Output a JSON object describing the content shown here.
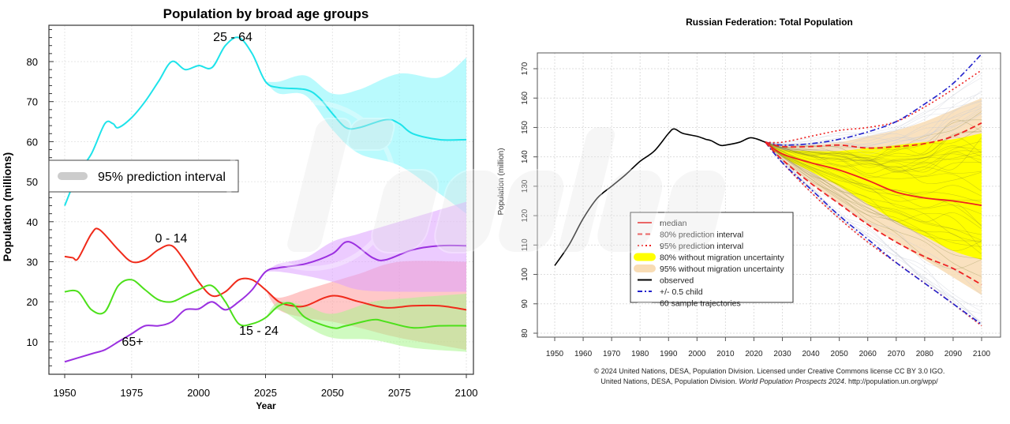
{
  "watermark": "Readovka",
  "chart_data": [
    {
      "type": "line",
      "title": "Population by broad age groups",
      "xlabel": "Year",
      "ylabel": "Population (millions)",
      "xlim": [
        1950,
        2100
      ],
      "ylim": [
        3,
        89
      ],
      "xticks": [
        1950,
        1975,
        2000,
        2025,
        2050,
        2075,
        2100
      ],
      "yticks": [
        10,
        20,
        30,
        40,
        50,
        60,
        70,
        80
      ],
      "grid": true,
      "legend": {
        "placement": "center-left",
        "entries": [
          {
            "label": "95% prediction interval",
            "color": "#cccccc"
          }
        ]
      },
      "series": [
        {
          "name": "25 - 64",
          "color": "#1ee3ea",
          "band_color": "#7ff6fb",
          "x": [
            1950,
            1955,
            1960,
            1965,
            1968,
            1970,
            1975,
            1980,
            1985,
            1990,
            1995,
            2000,
            2005,
            2010,
            2015,
            2020,
            2025,
            2030,
            2040,
            2045,
            2050,
            2055,
            2060,
            2070,
            2075,
            2080,
            2090,
            2100
          ],
          "y": [
            44,
            52,
            57,
            64.5,
            64.5,
            63.5,
            66,
            70,
            75,
            80,
            78,
            79,
            78.5,
            84,
            86,
            82,
            75,
            73.5,
            73,
            71,
            67,
            63.5,
            63.5,
            65.5,
            64.5,
            62,
            60.5,
            60.5
          ],
          "band_x": [
            2025,
            2030,
            2040,
            2050,
            2060,
            2075,
            2090,
            2100
          ],
          "band_lower": [
            75,
            72,
            71.5,
            63,
            57,
            54,
            47,
            42
          ],
          "band_upper": [
            75,
            75,
            76.5,
            72,
            73,
            77,
            76,
            81
          ]
        },
        {
          "name": "0 - 14",
          "color": "#f02a1a",
          "band_color": "#ff9a9a",
          "x": [
            1950,
            1953,
            1955,
            1960,
            1963,
            1970,
            1975,
            1980,
            1985,
            1990,
            1995,
            2000,
            2005,
            2010,
            2015,
            2020,
            2025,
            2030,
            2035,
            2040,
            2050,
            2060,
            2070,
            2080,
            2090,
            2100
          ],
          "y": [
            31.3,
            31,
            30.8,
            37,
            38,
            33,
            30,
            30.5,
            33,
            34,
            30,
            25,
            21.5,
            22.5,
            25.5,
            25.5,
            23,
            20,
            19,
            19,
            21.5,
            20,
            18.5,
            19,
            19,
            18
          ],
          "band_x": [
            2025,
            2030,
            2040,
            2050,
            2060,
            2075,
            2100
          ],
          "band_lower": [
            23,
            18,
            16,
            15,
            13.5,
            11,
            8
          ],
          "band_upper": [
            23,
            21,
            23,
            25,
            27,
            30,
            30
          ]
        },
        {
          "name": "15 - 24",
          "color": "#4ce01a",
          "band_color": "#a8f58c",
          "x": [
            1950,
            1955,
            1960,
            1965,
            1970,
            1975,
            1980,
            1985,
            1990,
            1995,
            2000,
            2005,
            2010,
            2015,
            2020,
            2025,
            2030,
            2035,
            2040,
            2050,
            2055,
            2065,
            2070,
            2080,
            2090,
            2100
          ],
          "y": [
            22.5,
            22.5,
            18,
            17.5,
            24,
            25.5,
            23,
            20.5,
            20,
            21.5,
            23,
            24,
            20,
            14.5,
            14.5,
            16,
            19,
            19.5,
            16,
            13.5,
            14,
            15.5,
            15,
            13.5,
            14,
            14
          ],
          "band_x": [
            2025,
            2030,
            2040,
            2050,
            2065,
            2080,
            2100
          ],
          "band_lower": [
            16,
            18,
            14,
            11,
            10.5,
            8.5,
            7.5
          ],
          "band_upper": [
            16,
            20,
            19,
            17,
            20,
            21,
            22
          ]
        },
        {
          "name": "65+",
          "color": "#9b30e0",
          "band_color": "#dca0ff",
          "x": [
            1950,
            1960,
            1965,
            1970,
            1975,
            1980,
            1985,
            1990,
            1995,
            2000,
            2005,
            2010,
            2015,
            2020,
            2025,
            2030,
            2040,
            2050,
            2056,
            2065,
            2070,
            2080,
            2090,
            2100
          ],
          "y": [
            5,
            7,
            8,
            10,
            12,
            14,
            14,
            15,
            18,
            18.2,
            20,
            18,
            20,
            23,
            27.5,
            28.5,
            29.5,
            32,
            35,
            31,
            30.5,
            33,
            34,
            34
          ],
          "band_x": [
            2025,
            2030,
            2040,
            2050,
            2060,
            2075,
            2100
          ],
          "band_lower": [
            27.5,
            27.5,
            26.5,
            25,
            23,
            22.5,
            22.5
          ],
          "band_upper": [
            27.5,
            29.5,
            31,
            35,
            37,
            40,
            45
          ]
        }
      ]
    },
    {
      "type": "line",
      "title": "Russian Federation: Total Population",
      "xlabel": "",
      "ylabel": "Population (million)",
      "xlim": [
        1945,
        2107
      ],
      "ylim": [
        78.5,
        180
      ],
      "xticks": [
        1950,
        1960,
        1970,
        1980,
        1990,
        2000,
        2010,
        2020,
        2030,
        2040,
        2050,
        2060,
        2070,
        2080,
        2090,
        2100
      ],
      "yticks": [
        80,
        90,
        100,
        110,
        120,
        130,
        140,
        150,
        160,
        170
      ],
      "grid": true,
      "legend": {
        "placement": "center-left",
        "entries": [
          {
            "label": "median",
            "color": "#ee2222",
            "style": "solid"
          },
          {
            "label": "80% prediction interval",
            "color": "#ee2222",
            "style": "dashed"
          },
          {
            "label": "95% prediction interval",
            "color": "#ee2222",
            "style": "dotted"
          },
          {
            "label": "80% without migration uncertainty",
            "color": "#ffff00",
            "style": "band"
          },
          {
            "label": "95% without migration uncertainty",
            "color": "#f8dcb4",
            "style": "band"
          },
          {
            "label": "observed",
            "color": "#000000",
            "style": "solid"
          },
          {
            "label": "+/- 0.5 child",
            "color": "#2222cc",
            "style": "dashdot"
          },
          {
            "label": "60 sample trajectories",
            "color": "#cccccc",
            "style": "thin"
          }
        ]
      },
      "observed": {
        "x": [
          1950,
          1955,
          1960,
          1965,
          1970,
          1975,
          1980,
          1985,
          1990,
          1992,
          1995,
          2000,
          2003,
          2005,
          2008,
          2010,
          2015,
          2019,
          2024
        ],
        "y": [
          103,
          110,
          119,
          126,
          130,
          134,
          138.5,
          142,
          148,
          149.5,
          148,
          147,
          146,
          145.5,
          144,
          144,
          145,
          146.5,
          145
        ]
      },
      "projection_x": [
        2024,
        2030,
        2040,
        2050,
        2060,
        2070,
        2080,
        2090,
        2100
      ],
      "median": [
        145,
        141,
        138,
        135.5,
        132,
        128,
        126,
        125,
        123.5
      ],
      "pi80_upper": [
        145,
        143.5,
        143.5,
        144,
        143,
        143.5,
        144.5,
        147,
        151.5
      ],
      "pi80_lower": [
        145,
        139,
        131,
        124,
        117,
        111,
        106,
        102,
        96.5
      ],
      "pi95_upper": [
        145,
        145,
        147,
        149,
        150,
        152,
        157,
        163,
        169.5
      ],
      "pi95_lower": [
        145,
        138,
        128,
        119,
        111,
        104,
        97,
        90,
        82.5
      ],
      "half_child_upper": [
        145,
        144,
        144.5,
        146,
        148.5,
        152,
        158,
        165,
        175
      ],
      "half_child_lower": [
        145,
        138,
        129,
        120,
        112,
        104,
        97,
        90,
        83
      ],
      "no_migration_80_upper": [
        145,
        142.5,
        142,
        142,
        143,
        144,
        145,
        146,
        148
      ],
      "no_migration_80_lower": [
        145,
        140,
        135,
        130,
        124,
        118,
        113,
        108,
        105
      ],
      "no_migration_95_upper": [
        145,
        144,
        144,
        145,
        147,
        149,
        152,
        156,
        160
      ],
      "no_migration_95_lower": [
        145,
        139,
        131,
        124,
        117,
        111,
        105,
        99,
        93
      ],
      "sample_trajectories": 60
    }
  ],
  "footer": {
    "line1": "© 2024 United Nations, DESA, Population Division. Licensed under Creative Commons license CC BY 3.0 IGO.",
    "line2_prefix": "United Nations, DESA, Population Division. ",
    "line2_italic": "World Population Prospects 2024",
    "line2_suffix": ". http://population.un.org/wpp/"
  }
}
